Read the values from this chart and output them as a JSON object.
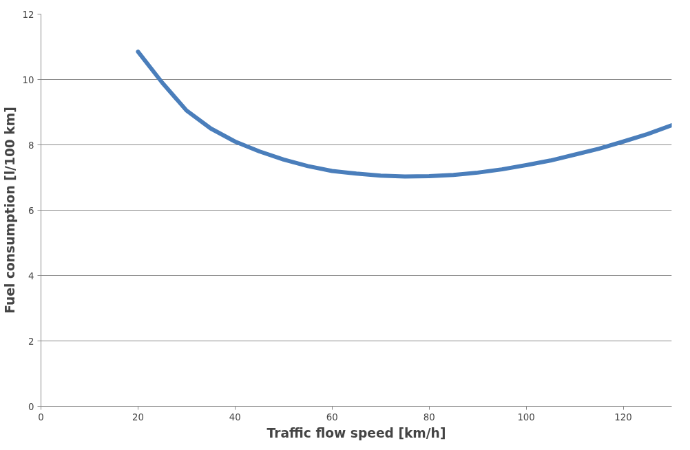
{
  "chart_data": {
    "type": "line",
    "xlabel": "Traffic flow speed [km/h]",
    "ylabel": "Fuel consumption [l/100 km]",
    "x": [
      20,
      25,
      30,
      35,
      40,
      45,
      50,
      55,
      60,
      65,
      70,
      75,
      80,
      85,
      90,
      95,
      100,
      105,
      110,
      115,
      120,
      125,
      130
    ],
    "series": [
      {
        "color": "#4a7ebb",
        "values": [
          10.85,
          9.9,
          9.05,
          8.5,
          8.1,
          7.8,
          7.55,
          7.35,
          7.2,
          7.12,
          7.06,
          7.03,
          7.04,
          7.08,
          7.15,
          7.25,
          7.38,
          7.52,
          7.7,
          7.88,
          8.1,
          8.33,
          8.6
        ]
      }
    ],
    "xlim": [
      0,
      130
    ],
    "xticks": [
      0,
      20,
      40,
      60,
      80,
      100,
      120
    ],
    "ylim": [
      0,
      12
    ],
    "yticks": [
      0,
      2,
      4,
      6,
      8,
      10,
      12
    ],
    "grid": "y",
    "marker": "none",
    "line_style": "solid"
  }
}
